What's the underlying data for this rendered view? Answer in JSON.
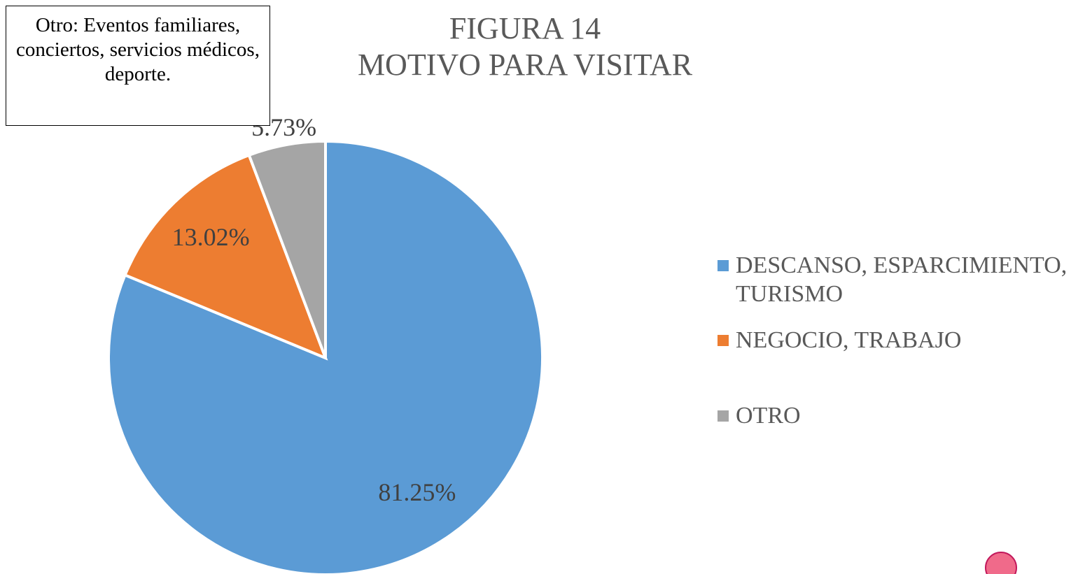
{
  "chart_data": {
    "type": "pie",
    "title": "FIGURA 14",
    "subtitle": "MOTIVO PARA VISITAR",
    "annotation": "Otro: Eventos familiares, conciertos, servicios médicos, deporte.",
    "categories": [
      "DESCANSO, ESPARCIMIENTO, TURISMO",
      "NEGOCIO, TRABAJO",
      "OTRO"
    ],
    "values": [
      81.25,
      13.02,
      5.73
    ],
    "value_labels": [
      "81.25%",
      "13.02%",
      "5.73%"
    ],
    "colors": [
      "#5b9bd5",
      "#ed7d31",
      "#a5a5a5"
    ],
    "legend": "right"
  }
}
